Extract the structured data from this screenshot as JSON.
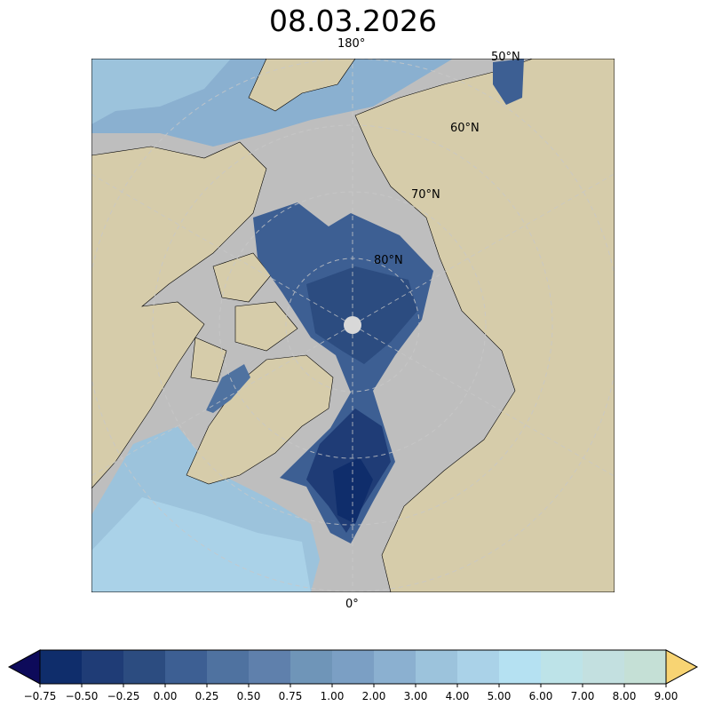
{
  "title": "08.03.2026",
  "map": {
    "projection": "north-polar-stereographic",
    "meridian_labels": {
      "top": "180°",
      "bottom": "0°"
    },
    "parallel_labels": [
      "50°N",
      "60°N",
      "70°N",
      "80°N"
    ],
    "colors": {
      "land": "#d6ccaa",
      "sea_ice_mask": "#bebebe",
      "rivers_lakes": "#9dbde0",
      "graticule": "#c8c8c8"
    }
  },
  "colorbar": {
    "ticks": [
      "−0.75",
      "−0.50",
      "−0.25",
      "0.00",
      "0.25",
      "0.50",
      "0.75",
      "1.00",
      "2.00",
      "3.00",
      "4.00",
      "5.00",
      "6.00",
      "7.00",
      "8.00",
      "9.00"
    ],
    "colors": [
      "#0f2d6b",
      "#1f3c76",
      "#2c4c80",
      "#3d5f93",
      "#4f72a0",
      "#5f80ac",
      "#6f95b8",
      "#7b9fc4",
      "#8bb0d0",
      "#9cc3dc",
      "#aad2e8",
      "#b5e1f2",
      "#bde3e8",
      "#c3e0e0",
      "#c5e0d6"
    ],
    "under_color": "#0d0a5a",
    "over_color": "#f8d473",
    "extend": "both"
  }
}
